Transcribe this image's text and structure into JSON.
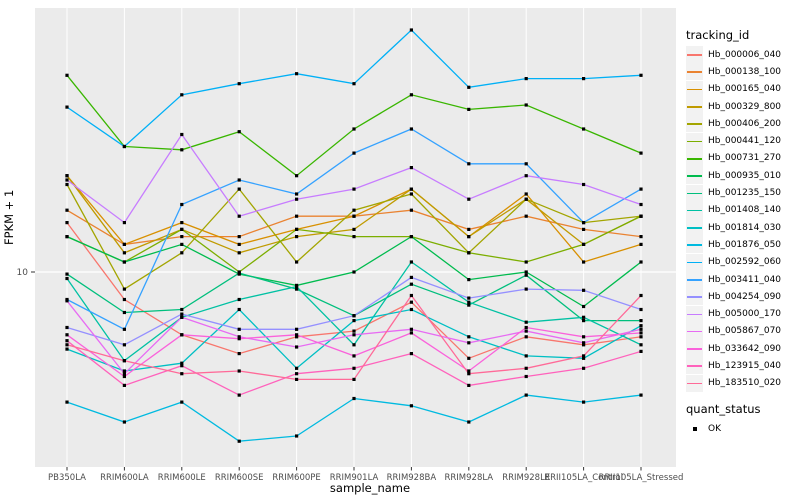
{
  "figure": {
    "y_axis": {
      "title": "FPKM + 1",
      "tick_labels": [
        "10"
      ]
    },
    "x_axis": {
      "title": "sample_name"
    },
    "legend": {
      "tracking_title": "tracking_id",
      "quant_title": "quant_status",
      "quant_items": [
        {
          "label": "OK"
        }
      ]
    },
    "colors": {
      "panel_bg": "#EBEBEB",
      "grid": "#FFFFFF",
      "key_bg": "#F2F2F2",
      "tick_text": "#4D4D4D",
      "tick_mark": "#333333",
      "point": "#000000"
    }
  },
  "chart_data": {
    "type": "line",
    "title": "",
    "xlabel": "sample_name",
    "ylabel": "FPKM + 1",
    "y_scale": "log10",
    "ylim": [
      1.55,
      120
    ],
    "y_breaks": [
      10
    ],
    "grid": true,
    "legend_position": "right",
    "point_marker": "black-square",
    "quant_status": "OK",
    "categories": [
      "PB350LA",
      "RRIM600LA",
      "RRIM600LE",
      "RRIM600SE",
      "RRIM600PE",
      "RRIM901LA",
      "RRIM928BA",
      "RRIM928LA",
      "RRIM928LE",
      "RRII105LA_Control",
      "RRII105LA_Stressed"
    ],
    "series": [
      {
        "name": "Hb_000006_040",
        "color": "#F8766D",
        "values": [
          16,
          7.7,
          5.5,
          4.6,
          5.4,
          5.7,
          7.5,
          4.4,
          5.4,
          5.0,
          5.4
        ]
      },
      {
        "name": "Hb_000138_100",
        "color": "#EA8331",
        "values": [
          18,
          13,
          14,
          14,
          17,
          17,
          18,
          15,
          17,
          15,
          14
        ]
      },
      {
        "name": "Hb_000165_040",
        "color": "#D89000",
        "values": [
          25,
          13,
          16,
          13,
          15,
          17,
          22,
          14,
          21,
          11,
          13
        ]
      },
      {
        "name": "Hb_000329_800",
        "color": "#C09B00",
        "values": [
          25,
          12,
          15,
          12,
          14,
          15,
          22,
          14,
          20,
          13,
          17
        ]
      },
      {
        "name": "Hb_000406_200",
        "color": "#A3A500",
        "values": [
          23,
          8.5,
          12,
          22,
          11,
          18,
          21,
          12,
          20,
          16,
          17
        ]
      },
      {
        "name": "Hb_000441_120",
        "color": "#7CAE00",
        "values": [
          14,
          11,
          15,
          10,
          15,
          14,
          14,
          12,
          11,
          13,
          17
        ]
      },
      {
        "name": "Hb_000731_270",
        "color": "#39B600",
        "values": [
          65,
          33,
          32,
          38,
          25,
          39,
          54,
          47,
          49,
          39,
          31
        ]
      },
      {
        "name": "Hb_000935_010",
        "color": "#00BB4E",
        "values": [
          14,
          11,
          13,
          9.8,
          8.8,
          10,
          14,
          9.3,
          10,
          7.2,
          11
        ]
      },
      {
        "name": "Hb_001235_150",
        "color": "#00BF7D",
        "values": [
          9.8,
          6.8,
          7.0,
          9.9,
          8.5,
          6.6,
          8.9,
          7.3,
          9.7,
          6.3,
          6.3
        ]
      },
      {
        "name": "Hb_001408_140",
        "color": "#00C1A3",
        "values": [
          9.4,
          4.3,
          6.5,
          7.7,
          8.7,
          5.0,
          11,
          7.5,
          6.2,
          6.5,
          5.0
        ]
      },
      {
        "name": "Hb_001814_030",
        "color": "#00BFC4",
        "values": [
          4.8,
          3.9,
          4.2,
          7.0,
          4.0,
          6.3,
          7.0,
          5.4,
          4.5,
          4.4,
          6.0
        ]
      },
      {
        "name": "Hb_001876_050",
        "color": "#00BAE0",
        "values": [
          2.9,
          2.4,
          2.9,
          2.0,
          2.1,
          3.0,
          2.8,
          2.4,
          3.1,
          2.9,
          3.1
        ]
      },
      {
        "name": "Hb_002592_060",
        "color": "#00B0F6",
        "values": [
          48,
          33,
          54,
          60,
          66,
          60,
          100,
          58,
          63,
          63,
          65
        ]
      },
      {
        "name": "Hb_003411_040",
        "color": "#35A2FF",
        "values": [
          7.7,
          5.8,
          19,
          24,
          21,
          31,
          39,
          28,
          28,
          16,
          22
        ]
      },
      {
        "name": "Hb_004254_090",
        "color": "#9590FF",
        "values": [
          5.9,
          5.0,
          6.7,
          5.8,
          5.8,
          6.6,
          9.5,
          7.8,
          8.5,
          8.4,
          7.0
        ]
      },
      {
        "name": "Hb_005000_170",
        "color": "#C77CFF",
        "values": [
          24,
          16,
          37,
          17,
          20,
          22,
          27,
          20,
          25,
          23,
          19
        ]
      },
      {
        "name": "Hb_005867_070",
        "color": "#E76BF3",
        "values": [
          7.6,
          3.8,
          6.5,
          5.4,
          4.9,
          5.5,
          5.8,
          5.1,
          5.7,
          5.1,
          5.8
        ]
      },
      {
        "name": "Hb_033642_090",
        "color": "#FA62DB",
        "values": [
          5.5,
          3.7,
          5.5,
          5.3,
          5.5,
          4.5,
          5.6,
          3.9,
          5.9,
          5.4,
          5.6
        ]
      },
      {
        "name": "Hb_123915_040",
        "color": "#FF62BC",
        "values": [
          5.2,
          3.4,
          4.1,
          3.1,
          3.8,
          4.0,
          4.6,
          3.4,
          3.7,
          4.0,
          4.7
        ]
      },
      {
        "name": "Hb_183510_020",
        "color": "#FF6A98",
        "values": [
          5.0,
          4.3,
          3.8,
          3.9,
          3.6,
          3.6,
          8.0,
          3.8,
          4.0,
          4.5,
          8.0
        ]
      }
    ]
  }
}
